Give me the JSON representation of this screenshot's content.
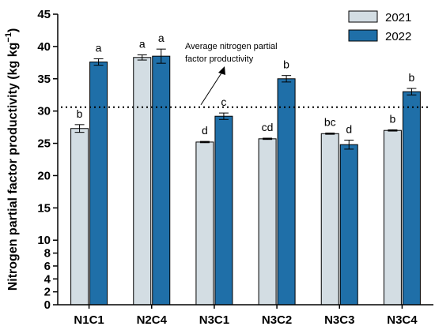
{
  "chart_data": {
    "type": "bar",
    "categories": [
      "N1C1",
      "N2C4",
      "N3C1",
      "N3C2",
      "N3C3",
      "N3C4"
    ],
    "series": [
      {
        "name": "2021",
        "color": "#d3dde3",
        "values": [
          27.3,
          38.3,
          25.2,
          25.7,
          26.5,
          27.0
        ],
        "errors": [
          0.6,
          0.4,
          0.1,
          0.1,
          0.1,
          0.1
        ],
        "letters": [
          "b",
          "a",
          "d",
          "cd",
          "bc",
          "b"
        ]
      },
      {
        "name": "2022",
        "color": "#1f6fa8",
        "values": [
          37.6,
          38.5,
          29.2,
          35.0,
          24.8,
          33.0
        ],
        "errors": [
          0.5,
          1.1,
          0.5,
          0.5,
          0.7,
          0.5
        ],
        "letters": [
          "a",
          "a",
          "c",
          "b",
          "d",
          "b"
        ]
      }
    ],
    "ylabel": "Nitrogen partial factor productivity (kg kg",
    "ylabel_sup": "−1",
    "ylabel_close": ")",
    "ylim": [
      0,
      45
    ],
    "yticks": [
      0,
      2,
      4,
      6,
      8,
      10,
      15,
      20,
      25,
      30,
      35,
      40,
      45
    ],
    "ytick_labels": [
      "0",
      "2",
      "4",
      "6",
      "8",
      "10",
      "15",
      "20",
      "25",
      "30",
      "35",
      "40",
      "45"
    ],
    "reference_line": {
      "value": 30.6,
      "style": "dotted"
    },
    "annotation": {
      "line1": "Average nitrogen partial",
      "line2": "factor productivity"
    },
    "legend": {
      "position": "top-right"
    },
    "grid": false
  }
}
